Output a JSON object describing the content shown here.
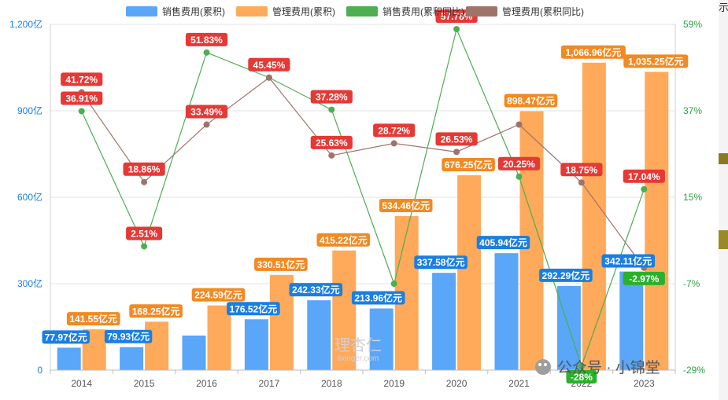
{
  "chart_data": {
    "type": "bar",
    "categories": [
      "2014",
      "2015",
      "2016",
      "2017",
      "2018",
      "2019",
      "2020",
      "2021",
      "2022",
      "2023"
    ],
    "series": [
      {
        "name": "销售费用(累积)",
        "kind": "bar",
        "axis": "left",
        "color": "#5aa6f8",
        "values": [
          77.97,
          79.93,
          120.0,
          176.52,
          242.33,
          213.96,
          337.58,
          405.94,
          292.29,
          342.11
        ],
        "labels": [
          "77.97亿元",
          "79.93亿元",
          "",
          "176.52亿元",
          "242.33亿元",
          "213.96亿元",
          "337.58亿元",
          "405.94亿元",
          "292.29亿元",
          "342.11亿元"
        ],
        "label_color": "#1a7fe0"
      },
      {
        "name": "管理费用(累积)",
        "kind": "bar",
        "axis": "left",
        "color": "#ffa95a",
        "values": [
          141.55,
          168.25,
          224.59,
          330.51,
          415.22,
          534.46,
          676.25,
          898.47,
          1066.96,
          1035.25
        ],
        "labels": [
          "141.55亿元",
          "168.25亿元",
          "224.59亿元",
          "330.51亿元",
          "415.22亿元",
          "534.46亿元",
          "676.25亿元",
          "898.47亿元",
          "1,066.96亿元",
          "1,035.25亿元"
        ],
        "label_color": "#f08a22"
      },
      {
        "name": "销售费用(累积同比)",
        "kind": "line",
        "axis": "right",
        "color": "#4caf50",
        "values": [
          36.91,
          2.51,
          51.83,
          45.45,
          37.28,
          -7.0,
          57.78,
          20.25,
          -28.0,
          17.04
        ],
        "labels": [
          "36.91%",
          "2.51%",
          "51.83%",
          "",
          "37.28%",
          "",
          "57.78%",
          "20.25%",
          "-28%",
          "17.04%"
        ]
      },
      {
        "name": "管理费用(累积同比)",
        "kind": "line",
        "axis": "right",
        "color": "#a0736a",
        "values": [
          41.72,
          18.86,
          33.49,
          45.45,
          25.63,
          28.72,
          26.53,
          33.5,
          18.75,
          -2.97
        ],
        "labels": [
          "41.72%",
          "18.86%",
          "33.49%",
          "45.45%",
          "25.63%",
          "28.72%",
          "26.53%",
          "",
          "18.75%",
          "-2.97%"
        ]
      }
    ],
    "left_axis": {
      "min": 0,
      "max": 1200,
      "ticks": [
        0,
        300,
        600,
        900,
        1200
      ],
      "tick_labels": [
        "0",
        "300亿",
        "600亿",
        "900亿",
        "1,200亿"
      ]
    },
    "right_axis": {
      "min": -29,
      "max": 59,
      "ticks": [
        -29,
        -7,
        15,
        37,
        59
      ],
      "tick_labels": [
        "-29%",
        "-7%",
        "15%",
        "37%",
        "59%"
      ]
    },
    "grid": true,
    "legend_position": "top-center"
  },
  "watermark": {
    "main": "理杏仁",
    "sub": "lixinger.com"
  },
  "overlay_text": "公众号 · 小锦堂",
  "edge_text": "示例"
}
